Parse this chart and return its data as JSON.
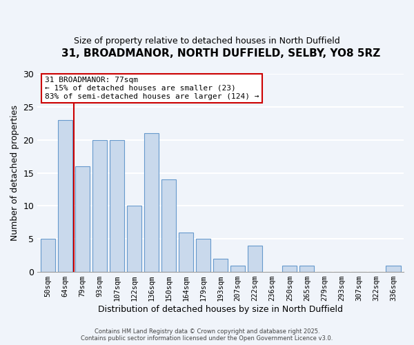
{
  "title": "31, BROADMANOR, NORTH DUFFIELD, SELBY, YO8 5RZ",
  "subtitle": "Size of property relative to detached houses in North Duffield",
  "xlabel": "Distribution of detached houses by size in North Duffield",
  "ylabel": "Number of detached properties",
  "bar_labels": [
    "50sqm",
    "64sqm",
    "79sqm",
    "93sqm",
    "107sqm",
    "122sqm",
    "136sqm",
    "150sqm",
    "164sqm",
    "179sqm",
    "193sqm",
    "207sqm",
    "222sqm",
    "236sqm",
    "250sqm",
    "265sqm",
    "279sqm",
    "293sqm",
    "307sqm",
    "322sqm",
    "336sqm"
  ],
  "bar_values": [
    5,
    23,
    16,
    20,
    20,
    10,
    21,
    14,
    6,
    5,
    2,
    1,
    4,
    0,
    1,
    1,
    0,
    0,
    0,
    0,
    1
  ],
  "bar_color": "#c9d9ec",
  "bar_edge_color": "#6699cc",
  "bg_color": "#f0f4fa",
  "grid_color": "#ffffff",
  "marker_line_color": "#cc0000",
  "annotation_line1": "31 BROADMANOR: 77sqm",
  "annotation_line2": "← 15% of detached houses are smaller (23)",
  "annotation_line3": "83% of semi-detached houses are larger (124) →",
  "annotation_box_color": "#cc0000",
  "ylim": [
    0,
    30
  ],
  "yticks": [
    0,
    5,
    10,
    15,
    20,
    25,
    30
  ],
  "footer1": "Contains HM Land Registry data © Crown copyright and database right 2025.",
  "footer2": "Contains public sector information licensed under the Open Government Licence v3.0."
}
